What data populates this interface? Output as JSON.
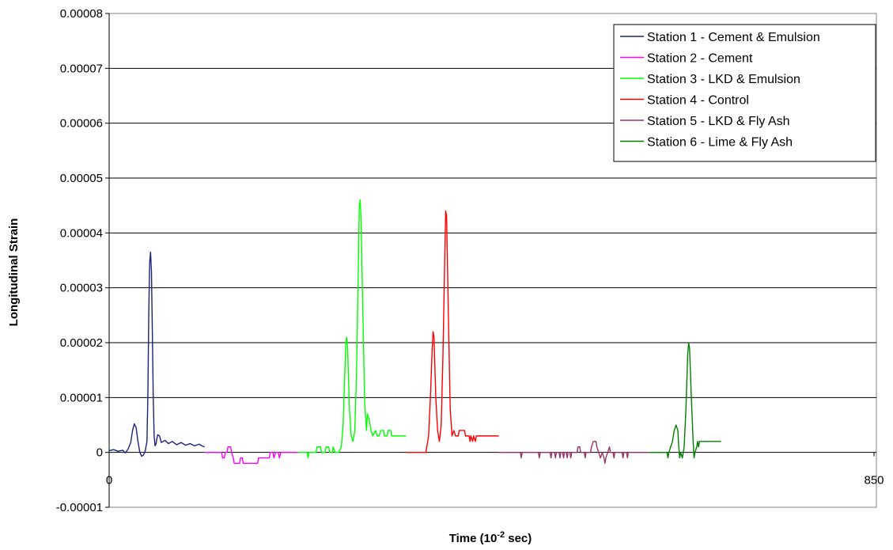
{
  "chart_data": {
    "type": "line",
    "title": "",
    "xlabel": "Time (10",
    "xlabel_sup": "-2",
    "xlabel_end": " sec)",
    "ylabel": "Longitudinal Strain",
    "xlim": [
      0,
      850
    ],
    "ylim": [
      -1e-05,
      8e-05
    ],
    "x_tick_labels": [
      "0",
      "850"
    ],
    "y_tick_labels": [
      "0.00008",
      "0.00007",
      "0.00006",
      "0.00005",
      "0.00004",
      "0.00003",
      "0.00002",
      "0.00001",
      "0",
      "-0.00001"
    ],
    "y_ticks": [
      8e-05,
      7e-05,
      6e-05,
      5e-05,
      4e-05,
      3e-05,
      2e-05,
      1e-05,
      0,
      -1e-05
    ],
    "grid": "horizontal",
    "legend_position": "top-right",
    "series": [
      {
        "name": "Station 1 - Cement & Emulsion",
        "color": "#1a237e",
        "points": [
          [
            0,
            3e-07
          ],
          [
            5,
            5e-07
          ],
          [
            10,
            2e-07
          ],
          [
            15,
            4e-07
          ],
          [
            18,
            -1e-07
          ],
          [
            21,
            6e-07
          ],
          [
            24,
            1.8e-06
          ],
          [
            26,
            4e-06
          ],
          [
            28,
            5.2e-06
          ],
          [
            30,
            4.5e-06
          ],
          [
            32,
            2e-06
          ],
          [
            34,
            1e-07
          ],
          [
            36,
            -7e-07
          ],
          [
            38,
            -5e-07
          ],
          [
            40,
            2e-07
          ],
          [
            42,
            2e-06
          ],
          [
            43,
            1e-05
          ],
          [
            44,
            2.5e-05
          ],
          [
            45,
            3.45e-05
          ],
          [
            46,
            3.65e-05
          ],
          [
            47,
            3.3e-05
          ],
          [
            48,
            2.2e-05
          ],
          [
            49,
            1e-05
          ],
          [
            50,
            3e-06
          ],
          [
            51,
            1.2e-06
          ],
          [
            52,
            1.5e-06
          ],
          [
            53,
            2.5e-06
          ],
          [
            54,
            3.2e-06
          ],
          [
            56,
            3e-06
          ],
          [
            58,
            1.8e-06
          ],
          [
            62,
            2.2e-06
          ],
          [
            66,
            1.6e-06
          ],
          [
            70,
            2e-06
          ],
          [
            75,
            1.4e-06
          ],
          [
            80,
            1.8e-06
          ],
          [
            85,
            1.3e-06
          ],
          [
            90,
            1.6e-06
          ],
          [
            95,
            1.2e-06
          ],
          [
            100,
            1.5e-06
          ],
          [
            103,
            1.2e-06
          ],
          [
            106,
            1e-06
          ]
        ]
      },
      {
        "name": "Station 2 - Cement",
        "color": "#ff00ff",
        "points": [
          [
            106,
            0
          ],
          [
            125,
            0
          ],
          [
            126,
            -1e-06
          ],
          [
            128,
            -1e-06
          ],
          [
            129,
            0
          ],
          [
            131,
            0
          ],
          [
            132,
            1e-06
          ],
          [
            135,
            1e-06
          ],
          [
            136,
            0
          ],
          [
            138,
            -1e-06
          ],
          [
            139,
            -2e-06
          ],
          [
            145,
            -2e-06
          ],
          [
            146,
            -1e-06
          ],
          [
            148,
            -1e-06
          ],
          [
            149,
            -2e-06
          ],
          [
            165,
            -2e-06
          ],
          [
            166,
            -1e-06
          ],
          [
            178,
            -1e-06
          ],
          [
            179,
            0
          ],
          [
            182,
            0
          ],
          [
            183,
            -1e-06
          ],
          [
            185,
            0
          ],
          [
            188,
            0
          ],
          [
            189,
            -1e-06
          ],
          [
            191,
            0
          ],
          [
            210,
            0
          ]
        ]
      },
      {
        "name": "Station 3 - LKD & Emulsion",
        "color": "#00ff00",
        "points": [
          [
            210,
            0
          ],
          [
            220,
            0
          ],
          [
            221,
            -1e-06
          ],
          [
            222,
            0
          ],
          [
            230,
            0
          ],
          [
            231,
            1e-06
          ],
          [
            235,
            1e-06
          ],
          [
            236,
            0
          ],
          [
            240,
            0
          ],
          [
            241,
            1e-06
          ],
          [
            244,
            1e-06
          ],
          [
            245,
            0
          ],
          [
            248,
            0
          ],
          [
            249,
            1e-06
          ],
          [
            251,
            0
          ],
          [
            255,
            0
          ],
          [
            258,
            1e-06
          ],
          [
            260,
            5e-06
          ],
          [
            262,
            1.5e-05
          ],
          [
            263,
            2e-05
          ],
          [
            264,
            2.1e-05
          ],
          [
            265,
            1.9e-05
          ],
          [
            267,
            8e-06
          ],
          [
            269,
            3e-06
          ],
          [
            271,
            2e-06
          ],
          [
            273,
            4e-06
          ],
          [
            275,
            1.5e-05
          ],
          [
            277,
            3.5e-05
          ],
          [
            278,
            4.5e-05
          ],
          [
            279,
            4.6e-05
          ],
          [
            280,
            4.2e-05
          ],
          [
            282,
            2.5e-05
          ],
          [
            284,
            9e-06
          ],
          [
            286,
            4e-06
          ],
          [
            287,
            7e-06
          ],
          [
            289,
            6e-06
          ],
          [
            291,
            4e-06
          ],
          [
            293,
            3e-06
          ],
          [
            296,
            4e-06
          ],
          [
            298,
            3e-06
          ],
          [
            300,
            3e-06
          ],
          [
            302,
            4e-06
          ],
          [
            305,
            4e-06
          ],
          [
            306,
            3e-06
          ],
          [
            309,
            3e-06
          ],
          [
            310,
            4e-06
          ],
          [
            313,
            4e-06
          ],
          [
            314,
            3e-06
          ],
          [
            330,
            3e-06
          ]
        ]
      },
      {
        "name": "Station 4 - Control",
        "color": "#ff0000",
        "points": [
          [
            330,
            0
          ],
          [
            352,
            0
          ],
          [
            353,
            1e-06
          ],
          [
            355,
            3e-06
          ],
          [
            357,
            1e-05
          ],
          [
            359,
            1.9e-05
          ],
          [
            360,
            2.2e-05
          ],
          [
            361,
            2.1e-05
          ],
          [
            363,
            1e-05
          ],
          [
            365,
            4e-06
          ],
          [
            367,
            2e-06
          ],
          [
            369,
            5e-06
          ],
          [
            371,
            1.8e-05
          ],
          [
            373,
            3.6e-05
          ],
          [
            374,
            4.4e-05
          ],
          [
            375,
            4.3e-05
          ],
          [
            377,
            2.5e-05
          ],
          [
            379,
            8e-06
          ],
          [
            381,
            3e-06
          ],
          [
            383,
            4e-06
          ],
          [
            385,
            3e-06
          ],
          [
            388,
            3e-06
          ],
          [
            389,
            4e-06
          ],
          [
            395,
            4e-06
          ],
          [
            396,
            3e-06
          ],
          [
            400,
            3e-06
          ],
          [
            401,
            2e-06
          ],
          [
            402,
            3e-06
          ],
          [
            404,
            2e-06
          ],
          [
            405,
            3e-06
          ],
          [
            407,
            2e-06
          ],
          [
            408,
            3e-06
          ],
          [
            433,
            3e-06
          ]
        ]
      },
      {
        "name": "Station 5 - LKD & Fly Ash",
        "color": "#993366",
        "points": [
          [
            433,
            0
          ],
          [
            457,
            0
          ],
          [
            458,
            -1e-06
          ],
          [
            459,
            0
          ],
          [
            477,
            0
          ],
          [
            478,
            -1e-06
          ],
          [
            479,
            0
          ],
          [
            490,
            0
          ],
          [
            491,
            -1e-06
          ],
          [
            492,
            0
          ],
          [
            495,
            0
          ],
          [
            496,
            -1e-06
          ],
          [
            497,
            0
          ],
          [
            500,
            0
          ],
          [
            501,
            -1e-06
          ],
          [
            502,
            0
          ],
          [
            504,
            0
          ],
          [
            505,
            -1e-06
          ],
          [
            506,
            0
          ],
          [
            508,
            0
          ],
          [
            509,
            -1e-06
          ],
          [
            510,
            0
          ],
          [
            512,
            0
          ],
          [
            513,
            -1e-06
          ],
          [
            514,
            0
          ],
          [
            520,
            0
          ],
          [
            521,
            1e-06
          ],
          [
            523,
            1e-06
          ],
          [
            524,
            0
          ],
          [
            528,
            0
          ],
          [
            529,
            -1e-06
          ],
          [
            530,
            0
          ],
          [
            535,
            0
          ],
          [
            536,
            1e-06
          ],
          [
            538,
            2e-06
          ],
          [
            541,
            2e-06
          ],
          [
            542,
            1e-06
          ],
          [
            544,
            0
          ],
          [
            546,
            -1e-06
          ],
          [
            548,
            0
          ],
          [
            550,
            -1e-06
          ],
          [
            551,
            -2e-06
          ],
          [
            552,
            -1e-06
          ],
          [
            554,
            0
          ],
          [
            556,
            1e-06
          ],
          [
            557,
            0
          ],
          [
            560,
            0
          ],
          [
            561,
            -1e-06
          ],
          [
            562,
            0
          ],
          [
            570,
            0
          ],
          [
            571,
            -1e-06
          ],
          [
            572,
            0
          ],
          [
            575,
            0
          ],
          [
            576,
            -1e-06
          ],
          [
            577,
            0
          ],
          [
            600,
            0
          ]
        ]
      },
      {
        "name": "Station 6 - Lime & Fly Ash",
        "color": "#008000",
        "points": [
          [
            600,
            0
          ],
          [
            620,
            0
          ],
          [
            621,
            -1e-06
          ],
          [
            622,
            0
          ],
          [
            624,
            1e-06
          ],
          [
            626,
            2e-06
          ],
          [
            628,
            4e-06
          ],
          [
            630,
            5e-06
          ],
          [
            632,
            4e-06
          ],
          [
            633,
            1e-06
          ],
          [
            634,
            -1e-06
          ],
          [
            635,
            0
          ],
          [
            637,
            -1e-06
          ],
          [
            639,
            1e-06
          ],
          [
            641,
            8e-06
          ],
          [
            643,
            1.8e-05
          ],
          [
            644,
            2e-05
          ],
          [
            645,
            1.9e-05
          ],
          [
            647,
            1e-05
          ],
          [
            649,
            2e-06
          ],
          [
            650,
            -1e-06
          ],
          [
            651,
            0
          ],
          [
            653,
            1e-06
          ],
          [
            654,
            2e-06
          ],
          [
            655,
            1e-06
          ],
          [
            656,
            2e-06
          ],
          [
            680,
            2e-06
          ]
        ]
      }
    ]
  }
}
